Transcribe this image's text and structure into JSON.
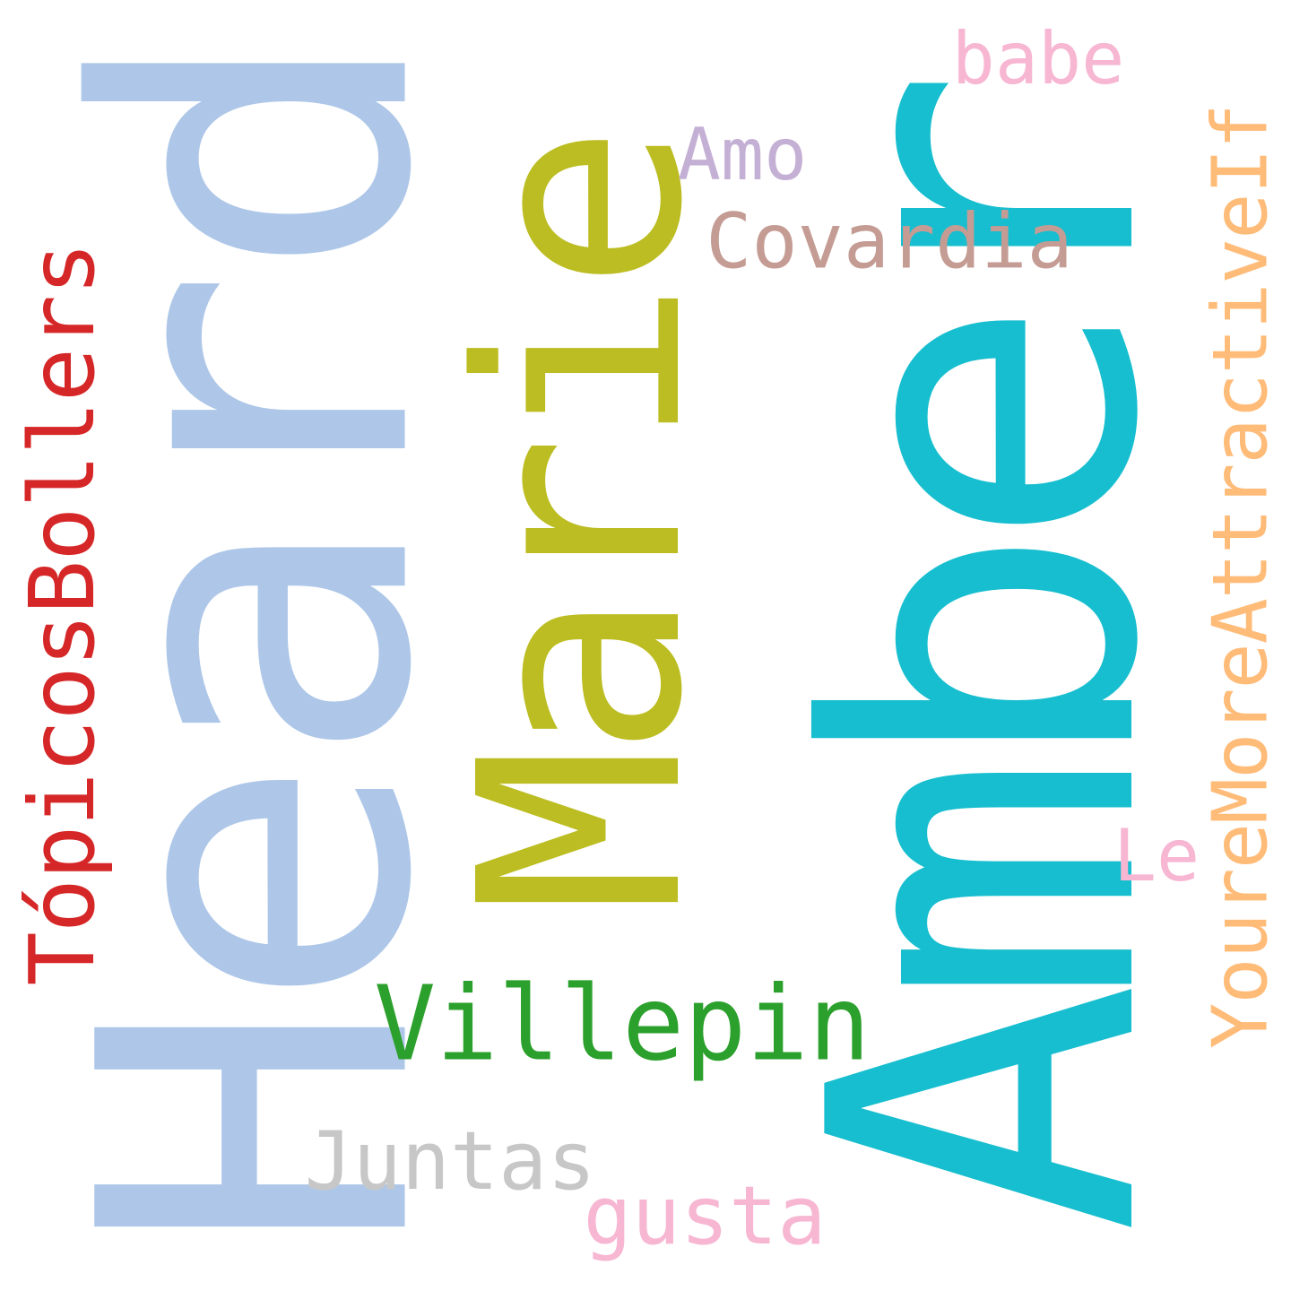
{
  "words": {
    "heard": {
      "text": "Heard",
      "color": "#aec7e8"
    },
    "amber": {
      "text": "Amber",
      "color": "#17becf"
    },
    "marie": {
      "text": "Marie",
      "color": "#bcbd22"
    },
    "topicos": {
      "text": "TópicosBollers",
      "color": "#d62728"
    },
    "youre": {
      "text": "YoureMoreAttractiveIf",
      "color": "#ffbb78"
    },
    "villepin": {
      "text": "Villepin",
      "color": "#2ca02c"
    },
    "covardia": {
      "text": "Covardia",
      "color": "#c49c94"
    },
    "babe": {
      "text": "babe",
      "color": "#f7b6d2"
    },
    "amo": {
      "text": "Amo",
      "color": "#c5b0d5"
    },
    "le": {
      "text": "Le",
      "color": "#f7b6d2"
    },
    "juntas": {
      "text": "Juntas",
      "color": "#c7c7c7"
    },
    "gusta": {
      "text": "gusta",
      "color": "#f7b6d2"
    }
  }
}
